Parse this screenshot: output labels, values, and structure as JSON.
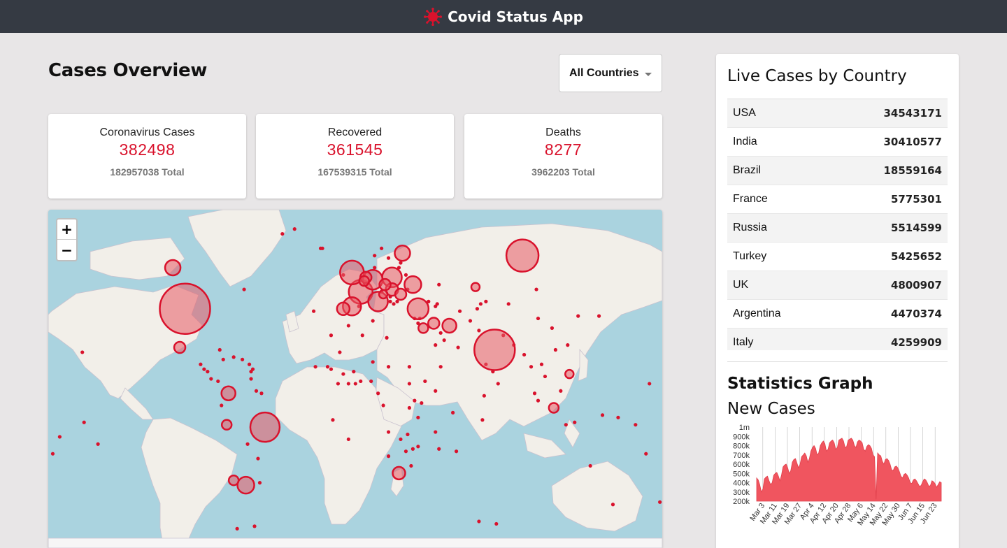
{
  "app": {
    "title": "Covid Status App",
    "brand_color": "#d9122c"
  },
  "overview": {
    "title": "Cases Overview",
    "country_select": {
      "selected": "All Countries"
    }
  },
  "stats": [
    {
      "label": "Coronavirus Cases",
      "value": "382498",
      "total": "182957038 Total"
    },
    {
      "label": "Recovered",
      "value": "361545",
      "total": "167539315 Total"
    },
    {
      "label": "Deaths",
      "value": "8277",
      "total": "3962203 Total"
    }
  ],
  "map": {
    "zoom_in": "+",
    "zoom_out": "−"
  },
  "live_cases": {
    "title": "Live Cases by Country",
    "rows": [
      {
        "country": "USA",
        "cases": "34543171"
      },
      {
        "country": "India",
        "cases": "30410577"
      },
      {
        "country": "Brazil",
        "cases": "18559164"
      },
      {
        "country": "France",
        "cases": "5775301"
      },
      {
        "country": "Russia",
        "cases": "5514599"
      },
      {
        "country": "Turkey",
        "cases": "5425652"
      },
      {
        "country": "UK",
        "cases": "4800907"
      },
      {
        "country": "Argentina",
        "cases": "4470374"
      },
      {
        "country": "Italy",
        "cases": "4259909"
      }
    ]
  },
  "graph": {
    "title": "Statistics Graph",
    "subtitle": "New Cases",
    "chart_data": {
      "type": "area",
      "color": "#f0555f",
      "y_ticks": [
        "1m",
        "900k",
        "800k",
        "700k",
        "600k",
        "500k",
        "400k",
        "300k",
        "200k"
      ],
      "x_ticks": [
        "Mar 3",
        "Mar 11",
        "Mar 19",
        "Mar 27",
        "Apr 4",
        "Apr 12",
        "Apr 20",
        "Apr 28",
        "May 6",
        "May 14",
        "May 22",
        "May 30",
        "Jun 7",
        "Jun 15",
        "Jun 23"
      ],
      "ylim": [
        200000,
        1000000
      ],
      "values": [
        450000,
        430000,
        380000,
        300000,
        330000,
        440000,
        460000,
        470000,
        420000,
        380000,
        400000,
        480000,
        500000,
        510000,
        470000,
        420000,
        480000,
        570000,
        590000,
        600000,
        560000,
        500000,
        530000,
        620000,
        650000,
        660000,
        610000,
        560000,
        600000,
        680000,
        700000,
        720000,
        690000,
        620000,
        660000,
        740000,
        780000,
        800000,
        770000,
        700000,
        720000,
        800000,
        830000,
        850000,
        820000,
        740000,
        760000,
        830000,
        850000,
        860000,
        830000,
        760000,
        780000,
        860000,
        870000,
        880000,
        850000,
        780000,
        790000,
        860000,
        870000,
        880000,
        860000,
        800000,
        780000,
        840000,
        860000,
        850000,
        830000,
        760000,
        740000,
        790000,
        810000,
        800000,
        770000,
        700000,
        680000,
        220000,
        720000,
        700000,
        690000,
        630000,
        600000,
        650000,
        660000,
        640000,
        600000,
        540000,
        530000,
        570000,
        580000,
        560000,
        520000,
        470000,
        450000,
        490000,
        500000,
        480000,
        450000,
        400000,
        390000,
        430000,
        440000,
        420000,
        390000,
        360000,
        370000,
        410000,
        440000,
        430000,
        400000,
        360000,
        370000,
        420000,
        410000,
        390000,
        350000,
        380000,
        410000,
        400000
      ]
    }
  },
  "map_circles": [
    {
      "lon": -99,
      "lat": 39,
      "r": 36
    },
    {
      "lon": 79,
      "lat": 22,
      "r": 29
    },
    {
      "lon": -53,
      "lat": -10,
      "r": 21
    },
    {
      "lon": 95,
      "lat": 61,
      "r": 23
    },
    {
      "lon": 2,
      "lat": 46,
      "r": 17
    },
    {
      "lon": -3,
      "lat": 54,
      "r": 17
    },
    {
      "lon": 35,
      "lat": 39,
      "r": 15
    },
    {
      "lon": 20,
      "lat": 52,
      "r": 14
    },
    {
      "lon": 12,
      "lat": 42,
      "r": 14
    },
    {
      "lon": 9,
      "lat": 51,
      "r": 14
    },
    {
      "lon": 26,
      "lat": 62,
      "r": 11
    },
    {
      "lon": 32,
      "lat": 49,
      "r": 12
    },
    {
      "lon": -3,
      "lat": 40,
      "r": 13
    },
    {
      "lon": -74,
      "lat": 4,
      "r": 10
    },
    {
      "lon": -102,
      "lat": 23,
      "r": 8
    },
    {
      "lon": -64,
      "lat": -34,
      "r": 12
    },
    {
      "lon": -71,
      "lat": -32,
      "r": 7
    },
    {
      "lon": -75,
      "lat": -9,
      "r": 7
    },
    {
      "lon": 113,
      "lat": -2,
      "r": 7
    },
    {
      "lon": 24,
      "lat": -29,
      "r": 9
    },
    {
      "lon": -106,
      "lat": 56,
      "r": 11
    },
    {
      "lon": 53,
      "lat": 32,
      "r": 10
    },
    {
      "lon": 44,
      "lat": 33,
      "r": 8
    },
    {
      "lon": 68,
      "lat": 48,
      "r": 6
    },
    {
      "lon": 122,
      "lat": 12,
      "r": 6
    },
    {
      "lon": 20,
      "lat": 47,
      "r": 9
    },
    {
      "lon": 16,
      "lat": 49,
      "r": 8
    },
    {
      "lon": 5,
      "lat": 52,
      "r": 8
    },
    {
      "lon": 38,
      "lat": 31,
      "r": 7
    },
    {
      "lon": -8,
      "lat": 39,
      "r": 9
    },
    {
      "lon": 25,
      "lat": 45,
      "r": 8
    },
    {
      "lon": 4,
      "lat": 50.5,
      "r": 7
    },
    {
      "lon": 15,
      "lat": 45,
      "r": 6
    }
  ],
  "map_dots": [
    [
      -43,
      70
    ],
    [
      -20,
      64
    ],
    [
      -36,
      72
    ],
    [
      139,
      36
    ],
    [
      127,
      36
    ],
    [
      104,
      35
    ],
    [
      100,
      15
    ],
    [
      106,
      16
    ],
    [
      108,
      11
    ],
    [
      96,
      20
    ],
    [
      90,
      24
    ],
    [
      84,
      28
    ],
    [
      65,
      34
    ],
    [
      70,
      30
    ],
    [
      58,
      23
    ],
    [
      48,
      29
    ],
    [
      50,
      26
    ],
    [
      45,
      24
    ],
    [
      48,
      15
    ],
    [
      39,
      9
    ],
    [
      45,
      5
    ],
    [
      37,
      0
    ],
    [
      33,
      1
    ],
    [
      30,
      -2
    ],
    [
      35,
      -6
    ],
    [
      29,
      -13
    ],
    [
      28,
      -20
    ],
    [
      32,
      -19
    ],
    [
      35,
      -18
    ],
    [
      47,
      -19
    ],
    [
      57,
      -20
    ],
    [
      55,
      -4
    ],
    [
      18,
      -12
    ],
    [
      15,
      -1
    ],
    [
      12,
      4
    ],
    [
      8,
      9
    ],
    [
      2,
      9
    ],
    [
      -1,
      8
    ],
    [
      -5,
      8
    ],
    [
      -11,
      8
    ],
    [
      -15,
      14
    ],
    [
      -17,
      15
    ],
    [
      -8,
      12
    ],
    [
      -2,
      13
    ],
    [
      9,
      17
    ],
    [
      18,
      15
    ],
    [
      30,
      15
    ],
    [
      30,
      8
    ],
    [
      25,
      -15
    ],
    [
      31,
      -26
    ],
    [
      18,
      -22
    ],
    [
      3,
      28
    ],
    [
      9,
      34
    ],
    [
      -5,
      32
    ],
    [
      17,
      27
    ],
    [
      -10,
      21
    ],
    [
      1,
      40
    ],
    [
      -24,
      15
    ],
    [
      -60,
      14
    ],
    [
      -66,
      18
    ],
    [
      -71,
      19
    ],
    [
      -77,
      18
    ],
    [
      -88,
      14
    ],
    [
      -86,
      13
    ],
    [
      -84,
      10
    ],
    [
      -80,
      9
    ],
    [
      -79,
      22
    ],
    [
      -90,
      16
    ],
    [
      -61,
      10
    ],
    [
      -58,
      5
    ],
    [
      -55,
      4
    ],
    [
      -63,
      -17
    ],
    [
      -57,
      -23
    ],
    [
      -56,
      -33
    ],
    [
      -78,
      -1
    ],
    [
      -65,
      47
    ],
    [
      -69,
      -52
    ],
    [
      -59,
      -51
    ],
    [
      14,
      64
    ],
    [
      -15,
      28
    ],
    [
      -25,
      38
    ],
    [
      150,
      -6
    ],
    [
      160,
      -9
    ],
    [
      178,
      -18
    ],
    [
      166,
      -21
    ],
    [
      174,
      -41
    ],
    [
      147,
      -42
    ],
    [
      134,
      -26
    ],
    [
      120,
      -9
    ],
    [
      125,
      -8
    ],
    [
      104,
      1
    ],
    [
      117,
      5
    ],
    [
      102,
      4
    ],
    [
      46,
      41
    ],
    [
      45,
      40
    ],
    [
      41,
      42
    ],
    [
      71,
      41
    ],
    [
      69,
      39
    ],
    [
      59,
      38
    ],
    [
      74,
      42
    ],
    [
      103,
      47
    ],
    [
      87,
      41
    ],
    [
      112,
      31
    ],
    [
      114,
      22
    ],
    [
      121,
      24
    ],
    [
      24,
      56
    ],
    [
      25,
      58
    ],
    [
      28,
      53
    ],
    [
      29,
      47
    ],
    [
      19,
      42
    ],
    [
      21,
      41
    ],
    [
      19,
      44
    ],
    [
      23,
      42
    ],
    [
      14,
      46
    ],
    [
      10,
      56
    ],
    [
      -8,
      53
    ],
    [
      -21,
      64
    ],
    [
      18,
      60
    ],
    [
      10,
      61
    ],
    [
      33,
      35
    ],
    [
      35,
      33
    ],
    [
      36,
      35
    ],
    [
      47,
      49
    ],
    [
      74,
      16
    ],
    [
      78,
      13
    ],
    [
      73,
      3
    ],
    [
      81,
      8
    ],
    [
      168,
      8
    ],
    [
      -175,
      -21
    ],
    [
      -149,
      -17
    ],
    [
      -158,
      21
    ],
    [
      -157,
      -8
    ],
    [
      -171,
      -14
    ],
    [
      80,
      -50
    ],
    [
      70,
      -49
    ],
    [
      141,
      -5
    ],
    [
      45,
      -12
    ],
    [
      72,
      -7
    ],
    [
      -5,
      -15
    ],
    [
      -14,
      -7
    ],
    [
      -61,
      13
    ],
    [
      -62,
      16
    ]
  ]
}
